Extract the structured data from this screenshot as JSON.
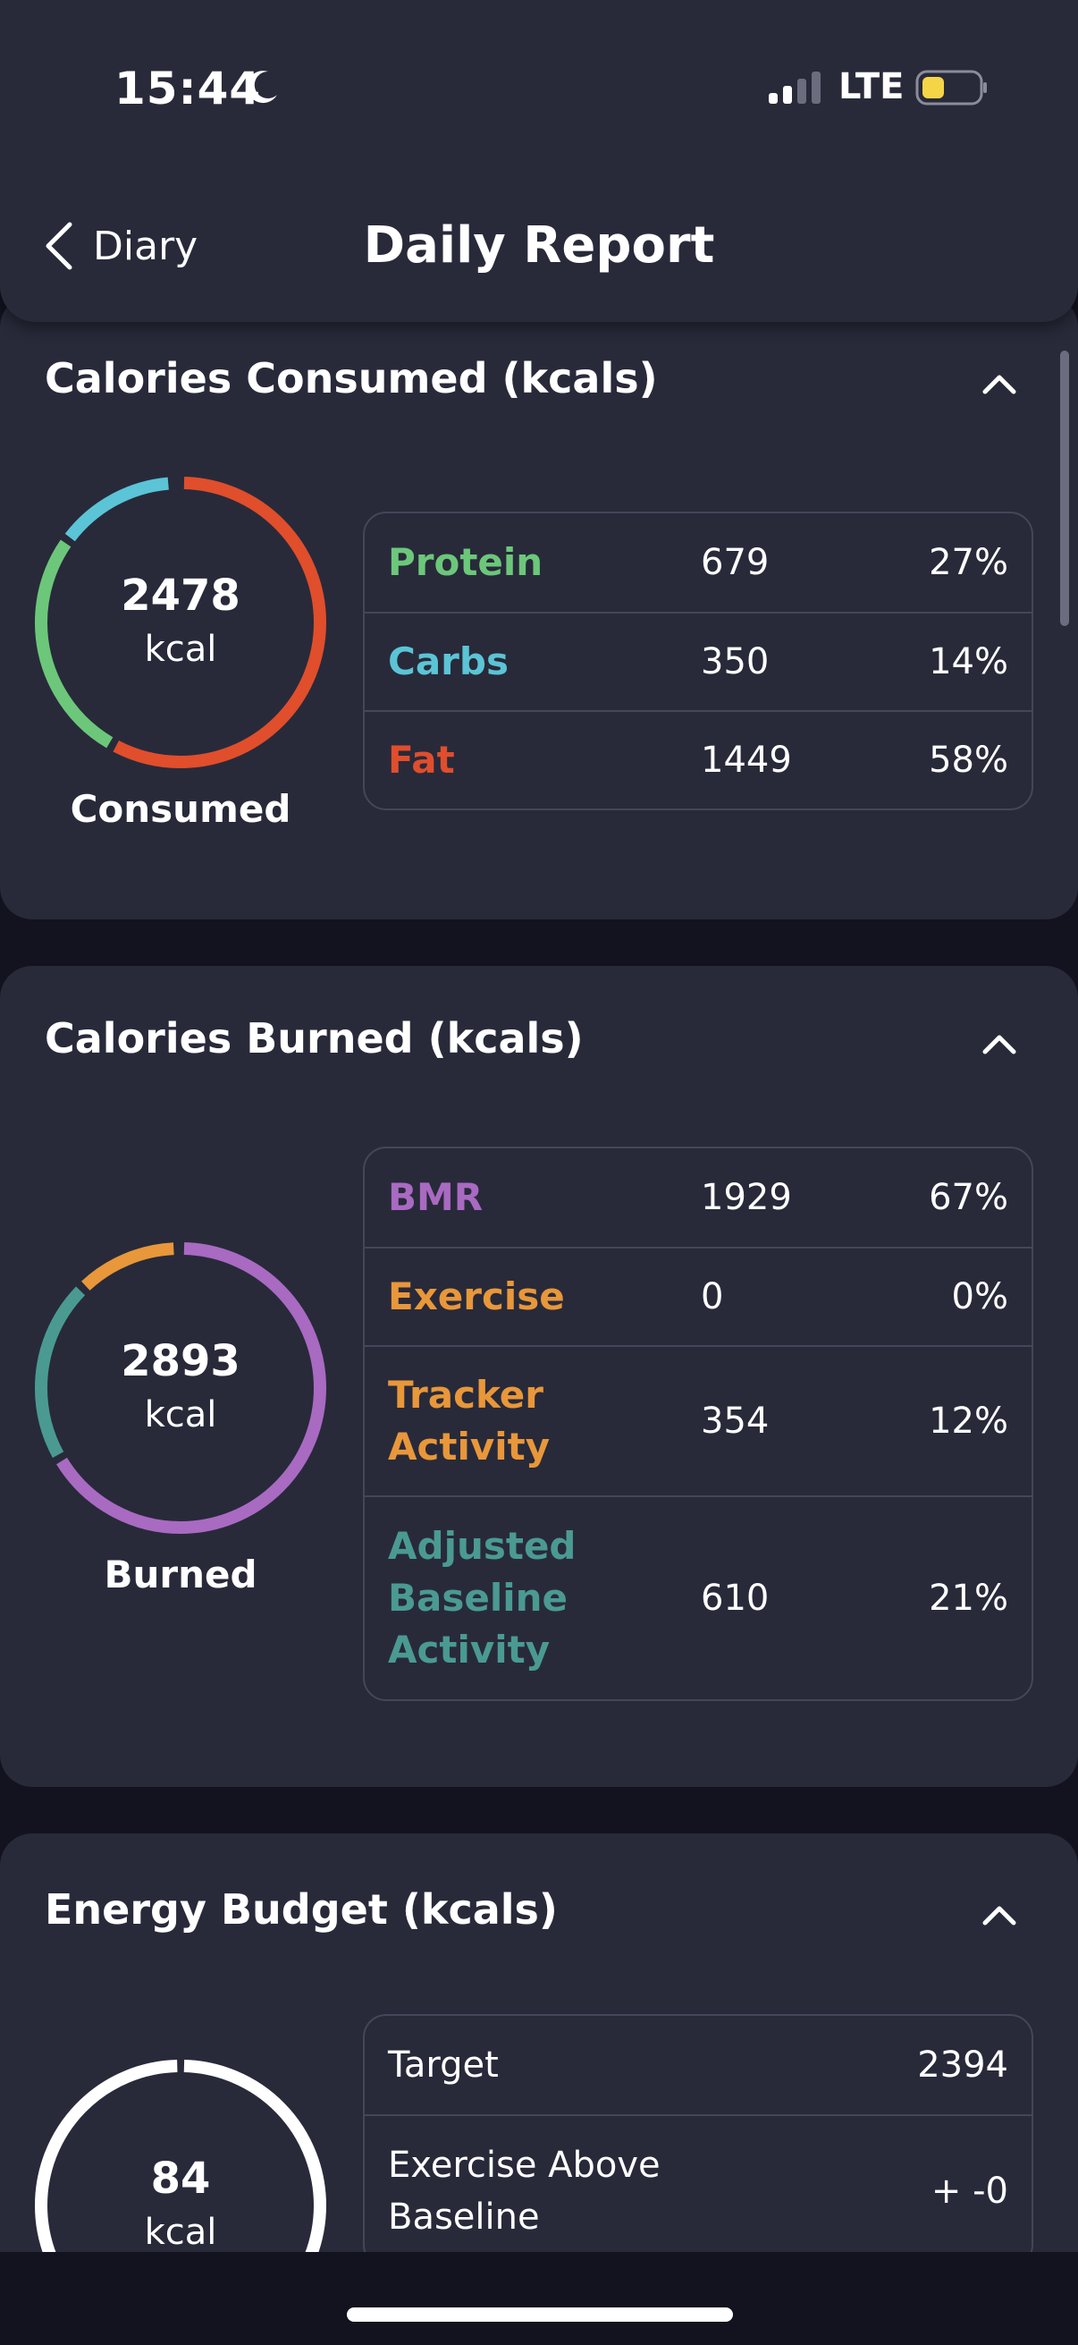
{
  "status_bar": {
    "time": "15:44",
    "network": "LTE"
  },
  "header": {
    "back_label": "Diary",
    "title": "Daily Report"
  },
  "colors": {
    "protein": "#6cc77a",
    "carbs": "#5bc4d6",
    "fat": "#e04e2c",
    "bmr": "#a96ac2",
    "exercise": "#e8973a",
    "tracker": "#e8973a",
    "adjusted": "#4a9a92"
  },
  "consumed": {
    "title": "Calories Consumed (kcals)",
    "total": "2478",
    "unit": "kcal",
    "caption": "Consumed",
    "rows": [
      {
        "label": "Protein",
        "value": "679",
        "pct": "27%"
      },
      {
        "label": "Carbs",
        "value": "350",
        "pct": "14%"
      },
      {
        "label": "Fat",
        "value": "1449",
        "pct": "58%"
      }
    ]
  },
  "burned": {
    "title": "Calories Burned (kcals)",
    "total": "2893",
    "unit": "kcal",
    "caption": "Burned",
    "rows": [
      {
        "label": "BMR",
        "value": "1929",
        "pct": "67%"
      },
      {
        "label": "Exercise",
        "value": "0",
        "pct": "0%"
      },
      {
        "label_line1": "Tracker",
        "label_line2": "Activity",
        "value": "354",
        "pct": "12%"
      },
      {
        "label_line1": "Adjusted",
        "label_line2": "Baseline",
        "label_line3": "Activity",
        "value": "610",
        "pct": "21%"
      }
    ]
  },
  "budget": {
    "title": "Energy Budget (kcals)",
    "total": "84",
    "unit": "kcal",
    "rows": [
      {
        "label": "Target",
        "value": "2394"
      },
      {
        "label_line1": "Exercise Above",
        "label_line2": "Baseline",
        "value": "+ -0"
      }
    ]
  }
}
